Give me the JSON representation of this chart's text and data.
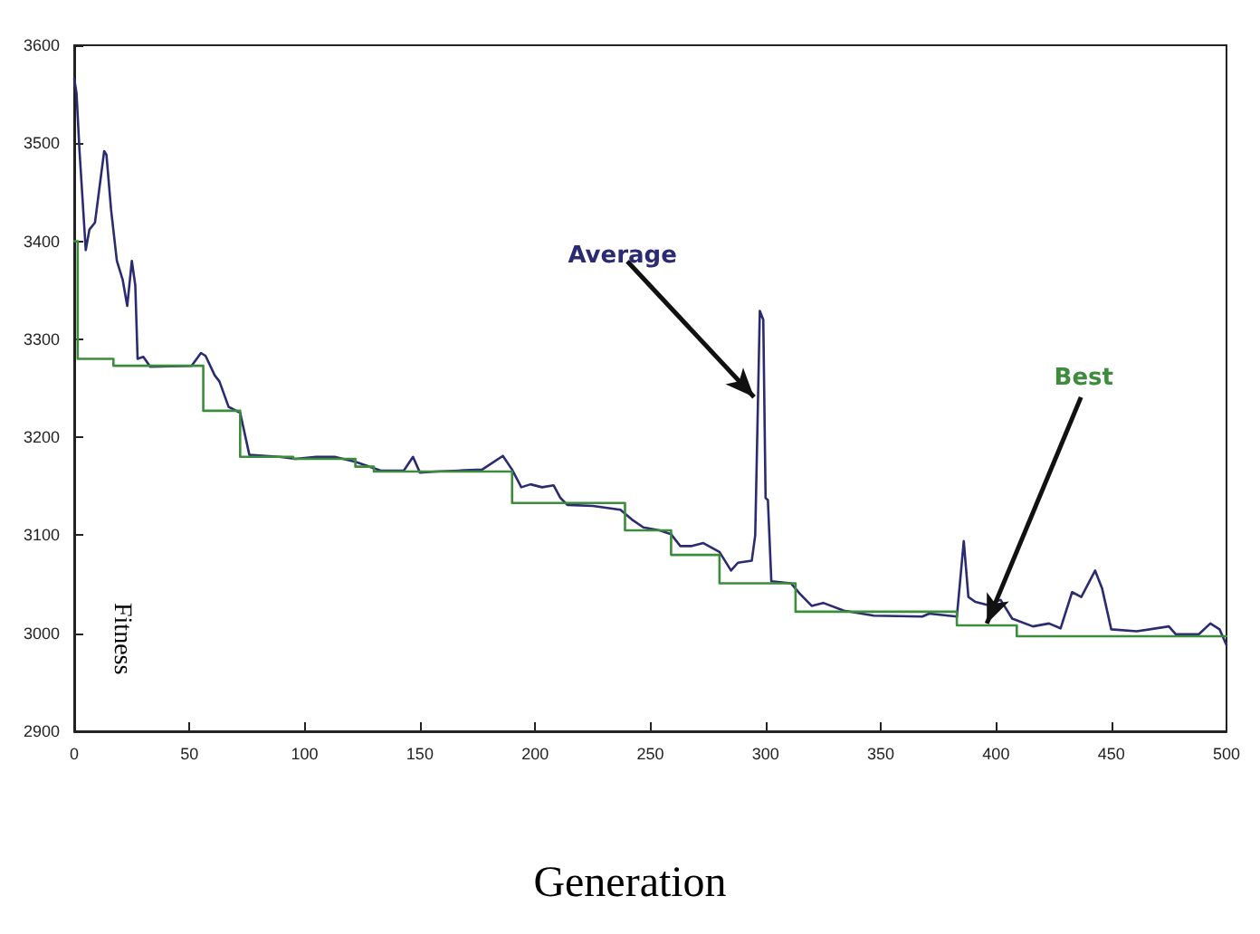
{
  "chart_data": {
    "type": "line",
    "xlabel": "Generation",
    "ylabel": "Fitness",
    "xlim": [
      0,
      500
    ],
    "ylim": [
      2900,
      3600
    ],
    "xticks": [
      0,
      50,
      100,
      150,
      200,
      250,
      300,
      350,
      400,
      450,
      500
    ],
    "yticks": [
      2900,
      3000,
      3100,
      3200,
      3300,
      3400,
      3500,
      3600
    ],
    "grid": false,
    "marker": "none",
    "line_style": "solid",
    "series": [
      {
        "color": "#2b2b72",
        "x": [
          0,
          1,
          2.3,
          5,
          6.6,
          9,
          13,
          14,
          16,
          18.5,
          21,
          23,
          25,
          26.5,
          27.5,
          30,
          33,
          51,
          55,
          57,
          61,
          63,
          67,
          72,
          76,
          89,
          96,
          105,
          113,
          122,
          133,
          143,
          147,
          150,
          157,
          167,
          177,
          186,
          190,
          194,
          198,
          203,
          208,
          211,
          214,
          225,
          237,
          242,
          247,
          254,
          259,
          263,
          268,
          273,
          280,
          285,
          288,
          294,
          295.5,
          297.5,
          299,
          300,
          301,
          302.5,
          311,
          315,
          320,
          325,
          334,
          347,
          368,
          371,
          383,
          386,
          388,
          391,
          396,
          402,
          407,
          416,
          423,
          428,
          433,
          437,
          443,
          446,
          450,
          461,
          475,
          478,
          488,
          493,
          497,
          500
        ],
        "values": [
          3566,
          3551,
          3492,
          3391,
          3412,
          3419,
          3492,
          3488,
          3432,
          3380,
          3361,
          3334,
          3380,
          3355,
          3280,
          3282,
          3272,
          3273,
          3286,
          3283,
          3263,
          3257,
          3231,
          3225,
          3182,
          3180,
          3178,
          3180,
          3180,
          3175,
          3166,
          3166,
          3180,
          3164,
          3165,
          3166,
          3167,
          3181,
          3167,
          3149,
          3152,
          3149,
          3151,
          3138,
          3131,
          3130,
          3126,
          3116,
          3108,
          3105,
          3101,
          3089,
          3089,
          3092,
          3083,
          3064,
          3072,
          3074,
          3100,
          3329,
          3320,
          3138,
          3136,
          3053,
          3051,
          3040,
          3028,
          3031,
          3023,
          3018,
          3017,
          3020,
          3017,
          3094,
          3037,
          3032,
          3029,
          3034,
          3015,
          3007,
          3010,
          3005,
          3042,
          3037,
          3064,
          3046,
          3004,
          3002,
          3007,
          2999,
          2999,
          3010,
          3004,
          2988
        ]
      },
      {
        "type": "step",
        "color": "#3c8c3c",
        "x": [
          0,
          1.5,
          17,
          56,
          72,
          95,
          122,
          130,
          190,
          239,
          259,
          280,
          313,
          383,
          409,
          500
        ],
        "values": [
          3400,
          3280,
          3273,
          3227,
          3180,
          3178,
          3170,
          3165,
          3133,
          3105,
          3080,
          3051,
          3022,
          3008,
          2997,
          2997
        ]
      }
    ],
    "annotations": [
      {
        "text": "Average",
        "x": 295,
        "y": 3241
      },
      {
        "text": "Best",
        "x": 396,
        "y": 3010
      }
    ]
  }
}
